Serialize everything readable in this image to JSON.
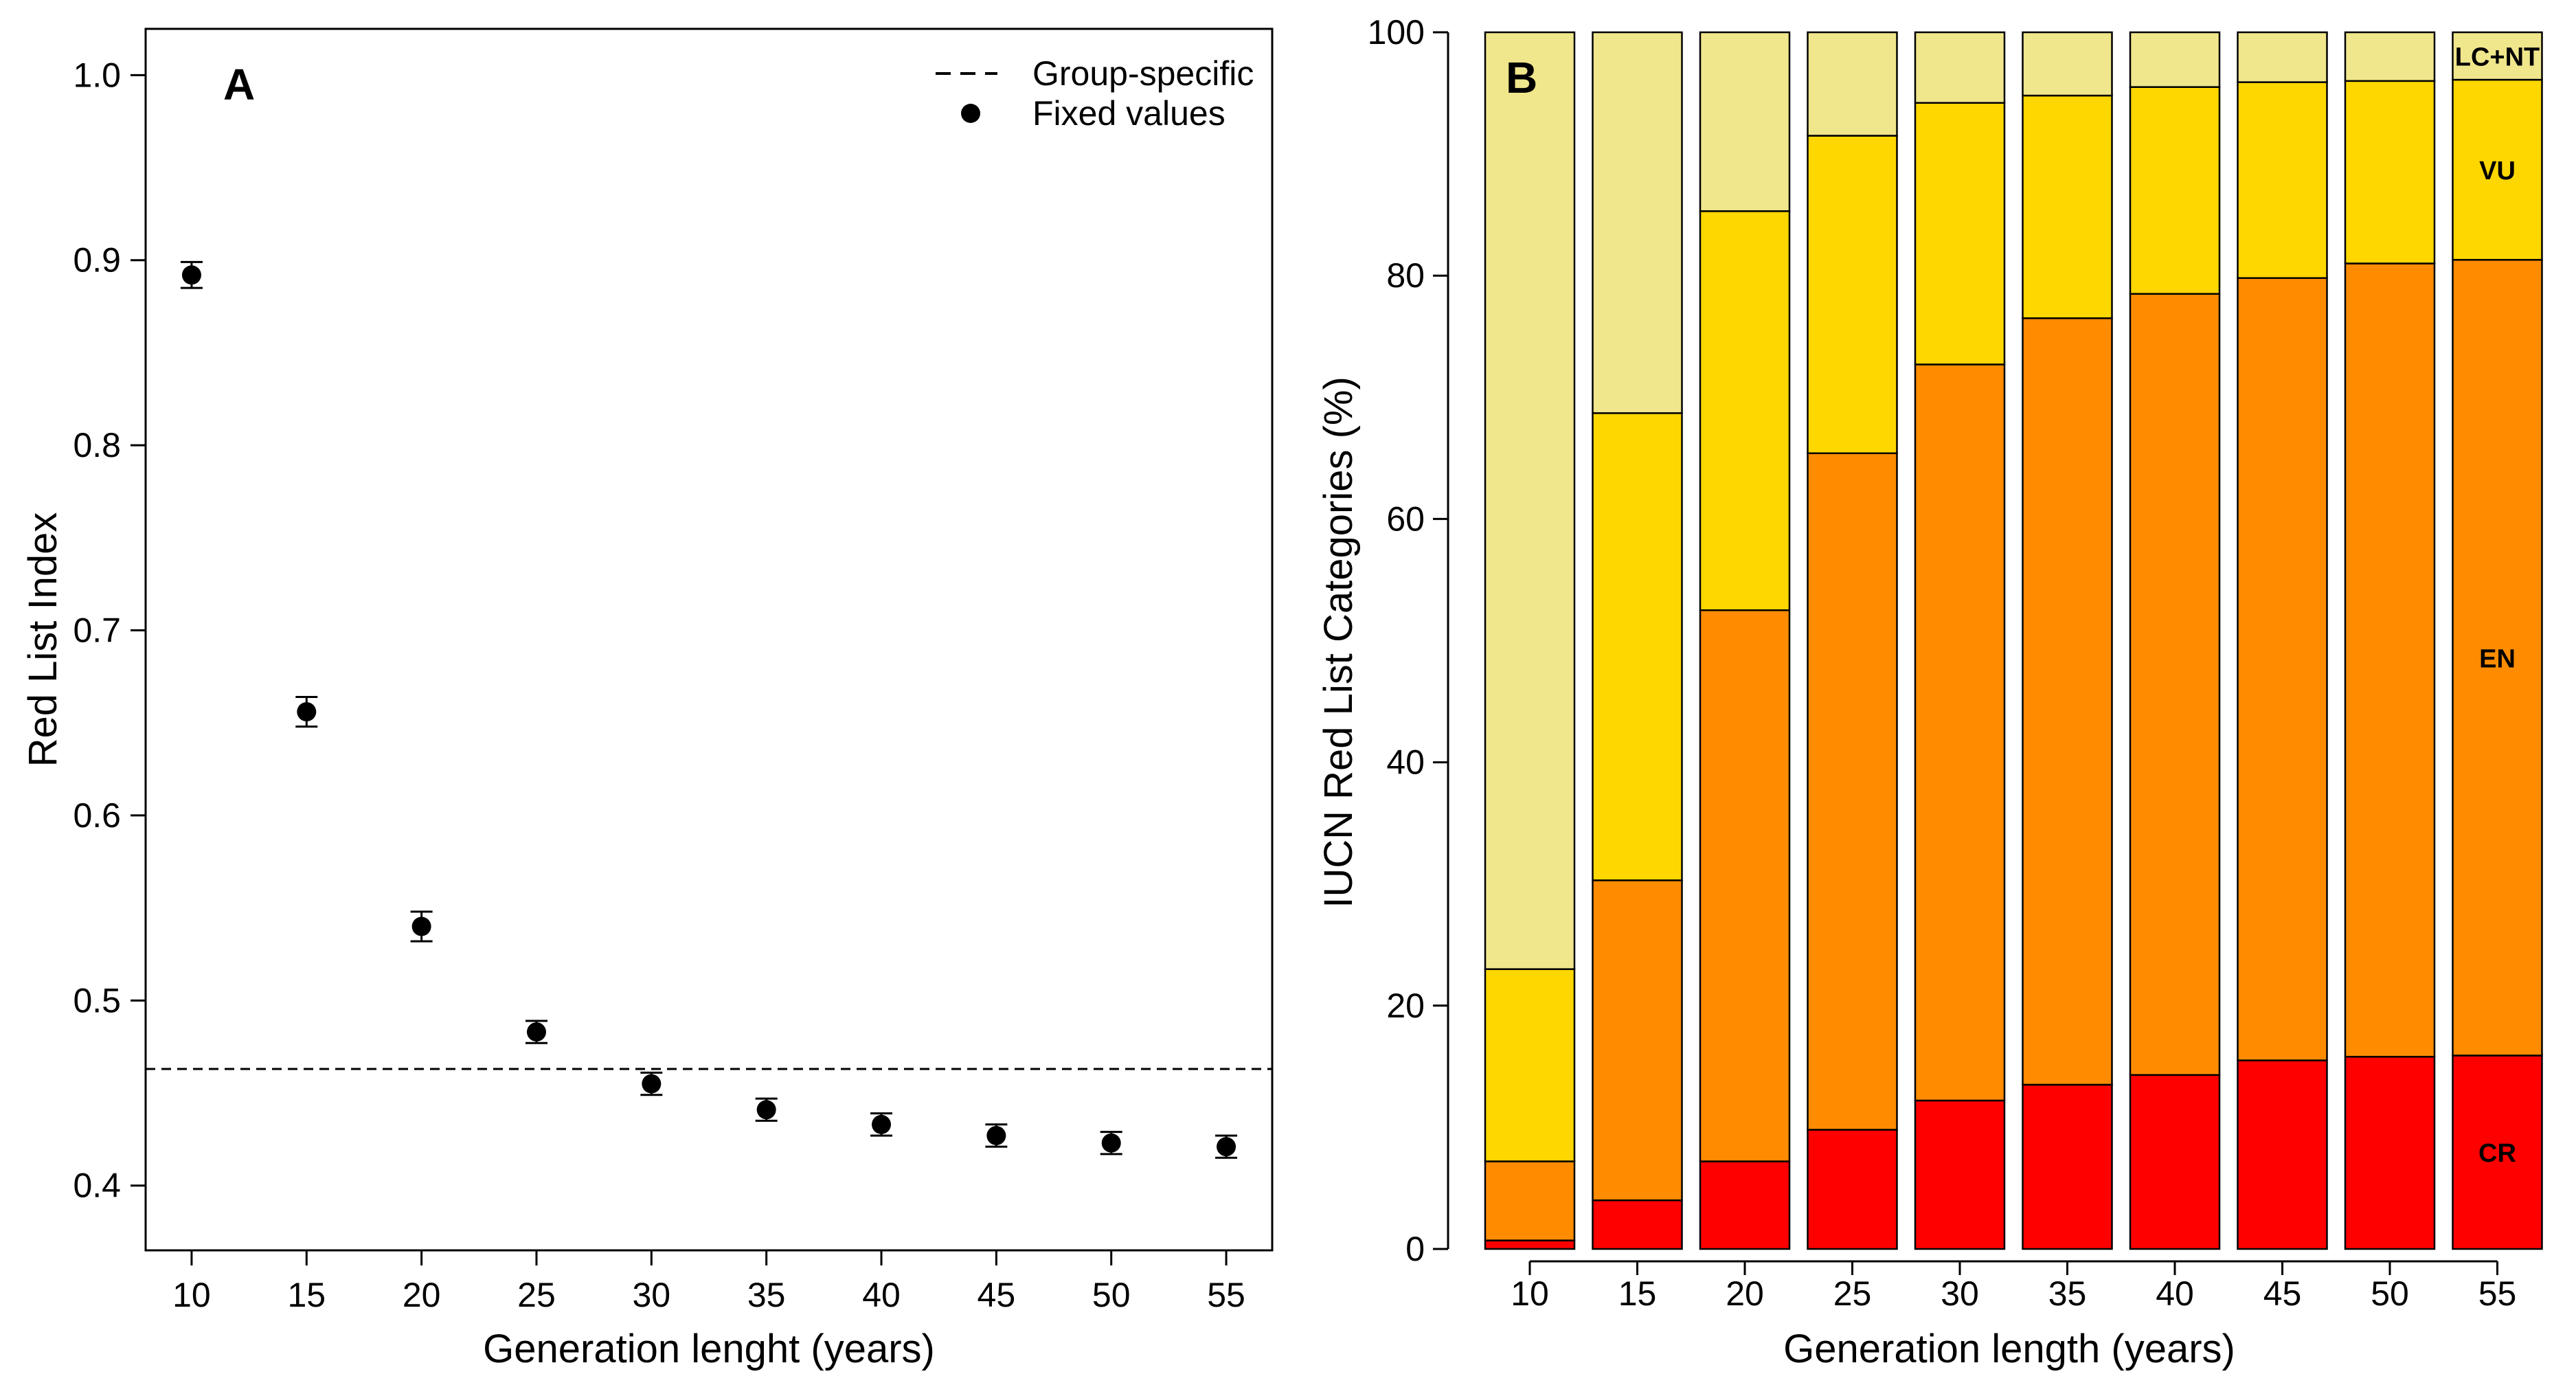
{
  "chart_data": [
    {
      "panel": "A",
      "type": "scatter",
      "xlabel": "Generation lenght (years)",
      "ylabel": "Red List Index",
      "xlim": [
        8,
        57
      ],
      "ylim": [
        0.365,
        1.025
      ],
      "xticks": [
        10,
        15,
        20,
        25,
        30,
        35,
        40,
        45,
        50,
        55
      ],
      "yticks": [
        0.4,
        0.5,
        0.6,
        0.7,
        0.8,
        0.9,
        1.0
      ],
      "ytick_labels": [
        "0.4",
        "0.5",
        "0.6",
        "0.7",
        "0.8",
        "0.9",
        "1.0"
      ],
      "legend": {
        "position": "top-right",
        "entries": [
          {
            "label": "Group-specific",
            "style": "dashed-line"
          },
          {
            "label": "Fixed values",
            "style": "point"
          }
        ]
      },
      "reference_line": {
        "series": "Group-specific",
        "y": 0.463
      },
      "series": [
        {
          "name": "Fixed values",
          "x": [
            10,
            15,
            20,
            25,
            30,
            35,
            40,
            45,
            50,
            55
          ],
          "y": [
            0.892,
            0.656,
            0.54,
            0.483,
            0.455,
            0.441,
            0.433,
            0.427,
            0.423,
            0.421
          ],
          "err": [
            0.007,
            0.008,
            0.008,
            0.006,
            0.006,
            0.006,
            0.006,
            0.006,
            0.006,
            0.006
          ]
        }
      ],
      "grid": false,
      "colors": {
        "points": "#000000"
      }
    },
    {
      "panel": "B",
      "type": "bar",
      "stacked": true,
      "xlabel": "Generation length (years)",
      "ylabel": "IUCN Red List Categories (%)",
      "ylim": [
        0,
        100
      ],
      "yticks": [
        0,
        20,
        40,
        60,
        80,
        100
      ],
      "categories": [
        "10",
        "15",
        "20",
        "25",
        "30",
        "35",
        "40",
        "45",
        "50",
        "55"
      ],
      "series": [
        {
          "name": "CR",
          "color": "#ff0000",
          "values": [
            0.7,
            4.0,
            7.2,
            9.8,
            12.2,
            13.5,
            14.3,
            15.5,
            15.8,
            15.9
          ]
        },
        {
          "name": "EN",
          "color": "#ff8c00",
          "values": [
            6.5,
            26.3,
            45.3,
            55.6,
            60.5,
            63.0,
            64.2,
            64.3,
            65.2,
            65.4
          ]
        },
        {
          "name": "VU",
          "color": "#ffd700",
          "values": [
            15.8,
            38.4,
            32.8,
            26.1,
            21.5,
            18.3,
            17.0,
            16.1,
            15.0,
            14.8
          ]
        },
        {
          "name": "LC+NT",
          "color": "#f0e68c",
          "values": [
            77.0,
            31.3,
            14.7,
            8.5,
            5.8,
            5.2,
            4.5,
            4.1,
            4.0,
            3.9
          ]
        }
      ],
      "segment_labels": [
        {
          "series": "LC+NT",
          "text": "LC+NT"
        },
        {
          "series": "VU",
          "text": "VU"
        },
        {
          "series": "EN",
          "text": "EN"
        },
        {
          "series": "CR",
          "text": "CR"
        }
      ],
      "grid": false
    }
  ]
}
